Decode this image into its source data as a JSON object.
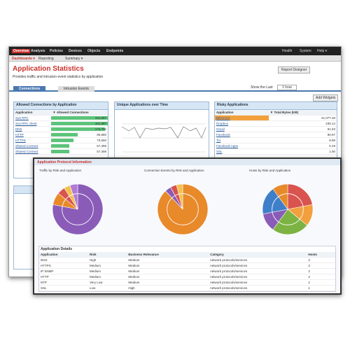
{
  "nav": {
    "tabs": [
      "Overview",
      "Analysis",
      "Policies",
      "Devices",
      "Objects",
      "Endpoints"
    ],
    "right": [
      "Health",
      "System",
      "Help ▾"
    ]
  },
  "subnav": [
    "Dashboards ▾",
    "Reporting",
    "Summary ▾"
  ],
  "page": {
    "title": "Application Statistics",
    "subtitle": "Provides traffic and intrusion event statistics by application",
    "button": "Report Designer",
    "tabs": [
      "Connections",
      "Intrusion Events"
    ],
    "show_last": "Show the Last",
    "period": "1 hour",
    "add": "Add Widgets"
  },
  "allowed": {
    "title": "Allowed Connections by Application",
    "columns": [
      "Application",
      "▼ Allowed Connections"
    ],
    "rows": [
      {
        "app": "Sun RPC",
        "value": 181987,
        "label": "181,987"
      },
      {
        "app": "Sun RPC client",
        "value": 181987,
        "label": "181,987"
      },
      {
        "app": "DNS",
        "value": 172792,
        "label": "172,792"
      },
      {
        "app": "HTTP",
        "value": 85880,
        "label": "85,880"
      },
      {
        "app": "HTTPS",
        "value": 70660,
        "label": "70,660"
      },
      {
        "app": "Shared Connect",
        "value": 57398,
        "label": "57,398"
      },
      {
        "app": "Shared Connect",
        "value": 57398,
        "label": "57,398"
      }
    ]
  },
  "unique": {
    "title": "Unique Applications over Time"
  },
  "risky": {
    "title": "Risky Applications",
    "columns": [
      "Application",
      "▼ Total Bytes (KB)"
    ],
    "rows": [
      [
        "BitTorrent",
        "41,077.48"
      ],
      [
        "Dropbox",
        "235.14"
      ],
      [
        "Gmail",
        "91.63"
      ],
      [
        "Facebook",
        "90.97"
      ],
      [
        "Tor",
        "8.89"
      ],
      [
        "Facebook Apps",
        "5.19"
      ],
      [
        "SSL",
        "1.90"
      ]
    ]
  },
  "front": {
    "title": "Application Protocol Information",
    "pies": [
      {
        "title": "Traffic by Risk and Application",
        "slices": [
          {
            "value": 78,
            "color": "#8a5cb8"
          },
          {
            "value": 8,
            "color": "#e8892a"
          },
          {
            "value": 5,
            "color": "#d9534f"
          },
          {
            "value": 4,
            "color": "#f2c14e"
          },
          {
            "value": 5,
            "color": "#b07cd8"
          }
        ]
      },
      {
        "title": "Connection Events by Risk and Application",
        "slices": [
          {
            "value": 88,
            "color": "#e8892a"
          },
          {
            "value": 4,
            "color": "#8a5cb8"
          },
          {
            "value": 4,
            "color": "#d9534f"
          },
          {
            "value": 4,
            "color": "#f2c14e"
          }
        ]
      },
      {
        "title": "Hosts by Risk and Application",
        "slices": [
          {
            "value": 22,
            "color": "#d9534f"
          },
          {
            "value": 14,
            "color": "#f2a03d"
          },
          {
            "value": 24,
            "color": "#7cb342"
          },
          {
            "value": 12,
            "color": "#8a5cb8"
          },
          {
            "value": 18,
            "color": "#3f7fc9"
          },
          {
            "value": 10,
            "color": "#e8892a"
          }
        ]
      }
    ],
    "details": {
      "title": "Application Details",
      "columns": [
        "Application",
        "Risk",
        "Business Relevance",
        "Category",
        "Hosts"
      ],
      "rows": [
        [
          "DNS",
          "High",
          "Medium",
          "network protocols/services",
          "3"
        ],
        [
          "HTTPS",
          "Medium",
          "Medium",
          "network protocols/services",
          "3"
        ],
        [
          "IP SNMP",
          "Medium",
          "Medium",
          "network protocols/services",
          "2"
        ],
        [
          "HTTP",
          "Medium",
          "Medium",
          "network protocols/services",
          "2"
        ],
        [
          "NTP",
          "Very Low",
          "Medium",
          "network protocols/services",
          "2"
        ],
        [
          "SSL",
          "Low",
          "High",
          "network protocols/services",
          "1"
        ]
      ]
    }
  }
}
